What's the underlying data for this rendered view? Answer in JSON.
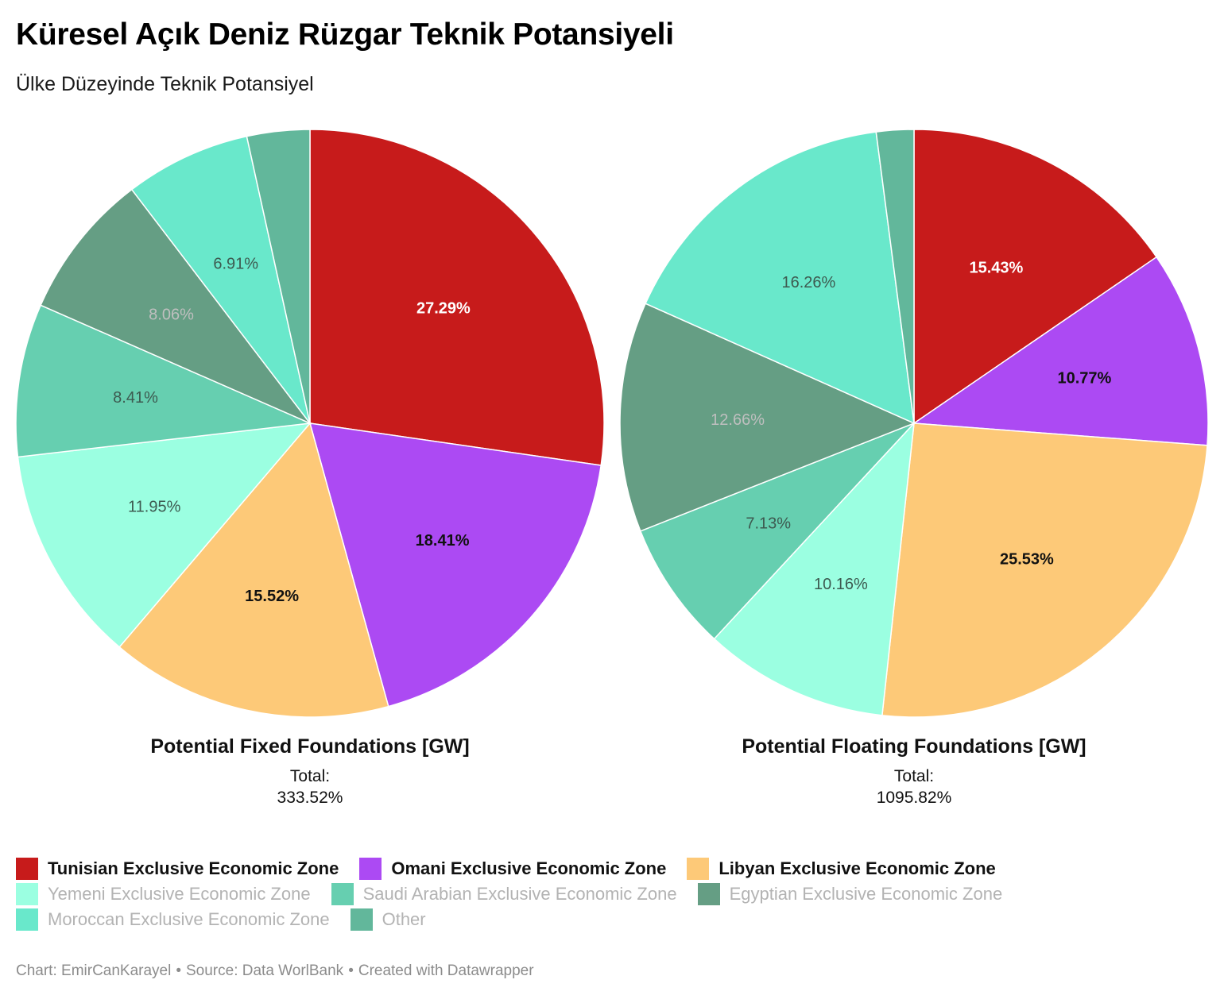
{
  "title": "Küresel Açık Deniz Rüzgar Teknik Potansiyeli",
  "subtitle": "Ülke Düzeyinde Teknik Potansiyel",
  "colors": {
    "tunisian": "#c71b1b",
    "omani": "#ac4af3",
    "libyan": "#fdc978",
    "yemeni": "#9bffe1",
    "saudi": "#66cfb0",
    "egyptian": "#659e84",
    "moroccan": "#69e8cb",
    "other": "#62b79b"
  },
  "legend": [
    {
      "key": "tunisian",
      "label": "Tunisian Exclusive Economic Zone",
      "style": "main"
    },
    {
      "key": "omani",
      "label": "Omani Exclusive Economic Zone",
      "style": "main"
    },
    {
      "key": "libyan",
      "label": "Libyan Exclusive Economic Zone",
      "style": "main"
    },
    {
      "key": "yemeni",
      "label": "Yemeni Exclusive Economic Zone",
      "style": "dim"
    },
    {
      "key": "saudi",
      "label": "Saudi Arabian Exclusive Economic Zone",
      "style": "dim"
    },
    {
      "key": "egyptian",
      "label": "Egyptian Exclusive Economic Zone",
      "style": "dim"
    },
    {
      "key": "moroccan",
      "label": "Moroccan Exclusive Economic Zone",
      "style": "dim"
    },
    {
      "key": "other",
      "label": "Other",
      "style": "dim"
    }
  ],
  "chart_data": [
    {
      "type": "pie",
      "title": "Potential Fixed Foundations [GW]",
      "total_label": "Total:",
      "total_value": "333.52%",
      "slices": [
        {
          "key": "tunisian",
          "value": 27.29,
          "label": "27.29%"
        },
        {
          "key": "omani",
          "value": 18.41,
          "label": "18.41%"
        },
        {
          "key": "libyan",
          "value": 15.52,
          "label": "15.52%"
        },
        {
          "key": "yemeni",
          "value": 11.95,
          "label": "11.95%"
        },
        {
          "key": "saudi",
          "value": 8.41,
          "label": "8.41%"
        },
        {
          "key": "egyptian",
          "value": 8.06,
          "label": "8.06%"
        },
        {
          "key": "moroccan",
          "value": 6.91,
          "label": "6.91%"
        },
        {
          "key": "other",
          "value": 3.45,
          "label": ""
        }
      ]
    },
    {
      "type": "pie",
      "title": "Potential Floating Foundations [GW]",
      "total_label": "Total:",
      "total_value": "1095.82%",
      "slices": [
        {
          "key": "tunisian",
          "value": 15.43,
          "label": "15.43%"
        },
        {
          "key": "omani",
          "value": 10.77,
          "label": "10.77%"
        },
        {
          "key": "libyan",
          "value": 25.53,
          "label": "25.53%"
        },
        {
          "key": "yemeni",
          "value": 10.16,
          "label": "10.16%"
        },
        {
          "key": "saudi",
          "value": 7.13,
          "label": "7.13%"
        },
        {
          "key": "egyptian",
          "value": 12.66,
          "label": "12.66%"
        },
        {
          "key": "moroccan",
          "value": 16.26,
          "label": "16.26%"
        },
        {
          "key": "other",
          "value": 2.06,
          "label": ""
        }
      ]
    }
  ],
  "footer": {
    "chart": "Chart: EmirCanKarayel",
    "source": "Source: Data WorlBank",
    "created": "Created with Datawrapper"
  }
}
